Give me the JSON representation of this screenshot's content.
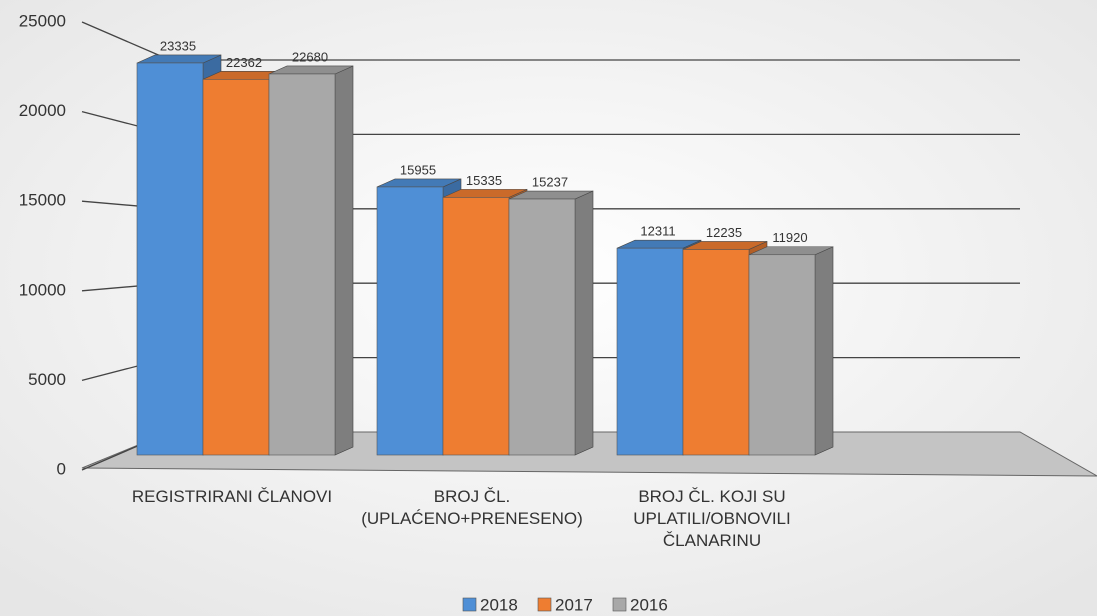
{
  "chart_data": {
    "type": "bar3d",
    "categories": [
      "REGISTRIRANI ČLANOVI",
      "BROJ ČL. (UPLAĆENO+PRENESENO)",
      "BROJ ČL. KOJI SU UPLATILI/OBNOVILI ČLANARINU"
    ],
    "series": [
      {
        "name": "2018",
        "color": "#4f8fd6",
        "values": [
          23335,
          15955,
          12311
        ]
      },
      {
        "name": "2017",
        "color": "#ee7d31",
        "values": [
          22362,
          15335,
          12235
        ]
      },
      {
        "name": "2016",
        "color": "#a8a8a8",
        "values": [
          22680,
          15237,
          11920
        ]
      }
    ],
    "ylim": [
      0,
      25000
    ],
    "yticks": [
      0,
      5000,
      10000,
      15000,
      20000,
      25000
    ],
    "grid": true,
    "legend": "bottom"
  }
}
